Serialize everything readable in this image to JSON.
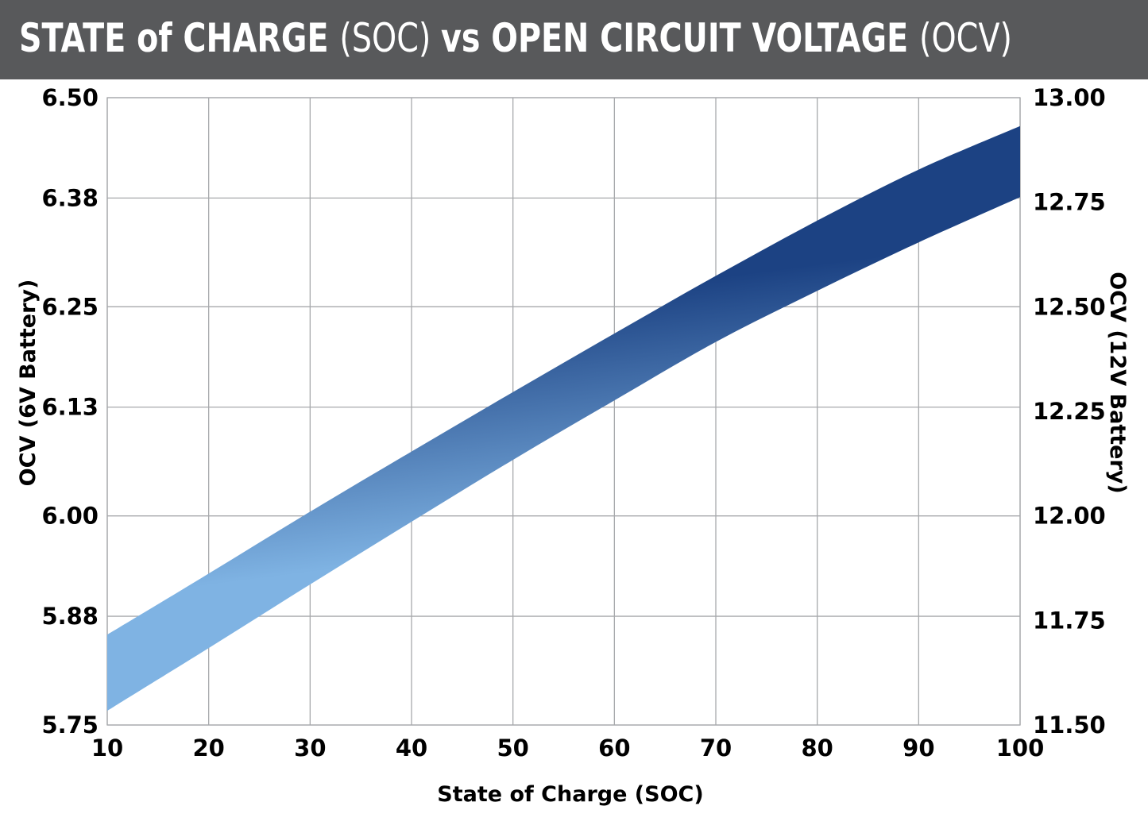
{
  "header": {
    "title_parts": [
      {
        "text": "STATE of CHARGE ",
        "weight": "bold"
      },
      {
        "text": "(SOC) ",
        "weight": "light"
      },
      {
        "text": "vs ",
        "weight": "bold"
      },
      {
        "text": "OPEN CIRCUIT VOLTAGE ",
        "weight": "bold"
      },
      {
        "text": "(OCV)",
        "weight": "light"
      }
    ]
  },
  "colors": {
    "header_background": "#58595b",
    "header_text": "#ffffff",
    "band_dark": "#1c4283",
    "band_light": "#7fb3e3",
    "grid": "#a7a9ac"
  },
  "chart_data": {
    "type": "area",
    "title": "STATE of CHARGE (SOC) vs OPEN CIRCUIT VOLTAGE (OCV)",
    "xlabel": "State of Charge (SOC)",
    "ylabel": "OCV (6V Battery)",
    "ylabel_right": "OCV (12V Battery)",
    "xlim": [
      10,
      100
    ],
    "ylim": [
      5.75,
      6.5
    ],
    "ylim_right": [
      11.5,
      13.0
    ],
    "x_ticks": [
      10,
      20,
      30,
      40,
      50,
      60,
      70,
      80,
      90,
      100
    ],
    "y_ticks_left": [
      "5.75",
      "5.88",
      "6.00",
      "6.13",
      "6.25",
      "6.38",
      "6.50"
    ],
    "y_ticks_right": [
      "11.50",
      "11.75",
      "12.00",
      "12.25",
      "12.50",
      "12.75",
      "13.00"
    ],
    "grid": true,
    "series": [
      {
        "x": [
          10,
          20,
          30,
          40,
          50,
          60,
          70,
          80,
          90,
          100
        ],
        "upper": [
          5.858,
          5.931,
          6.005,
          6.077,
          6.148,
          6.218,
          6.287,
          6.353,
          6.414,
          6.466
        ],
        "lower": [
          5.767,
          5.842,
          5.918,
          5.993,
          6.067,
          6.138,
          6.208,
          6.269,
          6.327,
          6.381
        ]
      }
    ]
  }
}
